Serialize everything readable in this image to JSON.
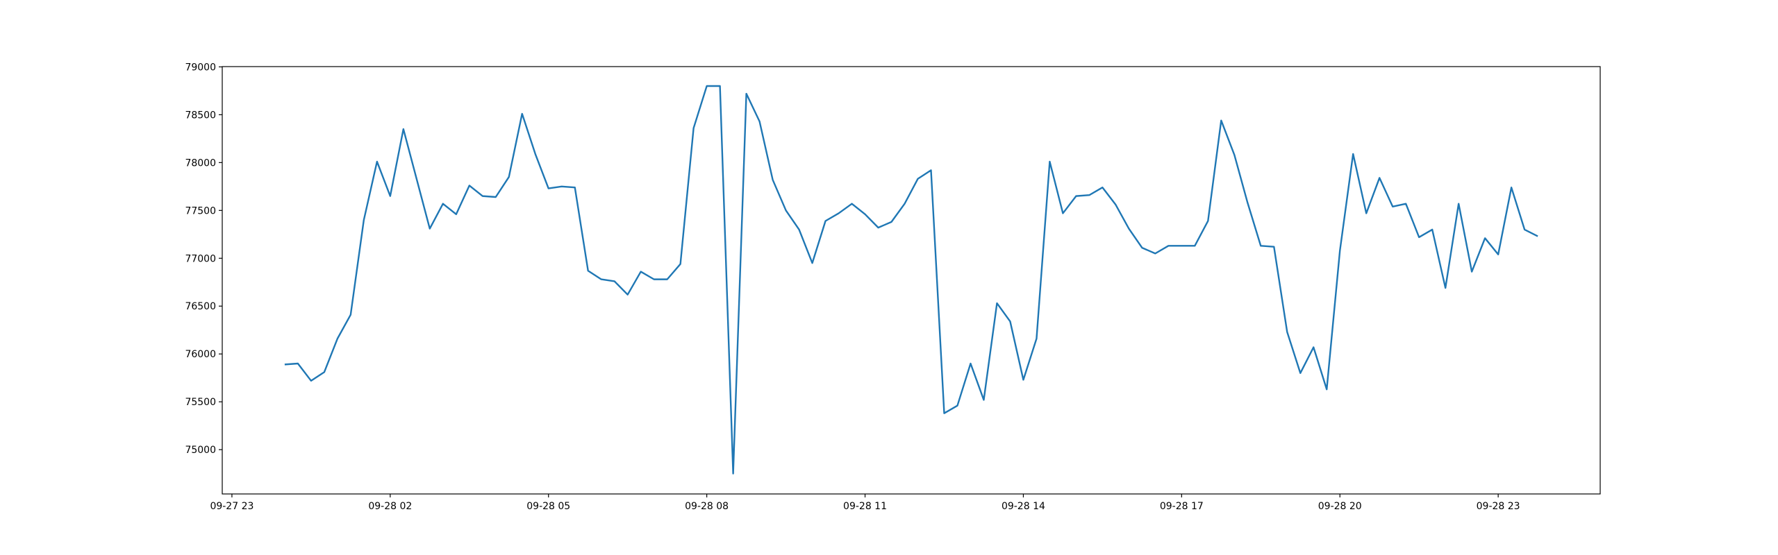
{
  "chart_data": {
    "type": "line",
    "x": [
      "09-28 00:00",
      "09-28 00:15",
      "09-28 00:30",
      "09-28 00:45",
      "09-28 01:00",
      "09-28 01:15",
      "09-28 01:30",
      "09-28 01:45",
      "09-28 02:00",
      "09-28 02:15",
      "09-28 02:30",
      "09-28 02:45",
      "09-28 03:00",
      "09-28 03:15",
      "09-28 03:30",
      "09-28 03:45",
      "09-28 04:00",
      "09-28 04:15",
      "09-28 04:30",
      "09-28 04:45",
      "09-28 05:00",
      "09-28 05:15",
      "09-28 05:30",
      "09-28 05:45",
      "09-28 06:00",
      "09-28 06:15",
      "09-28 06:30",
      "09-28 06:45",
      "09-28 07:00",
      "09-28 07:15",
      "09-28 07:30",
      "09-28 07:45",
      "09-28 08:00",
      "09-28 08:15",
      "09-28 08:30",
      "09-28 08:45",
      "09-28 09:00",
      "09-28 09:15",
      "09-28 09:30",
      "09-28 09:45",
      "09-28 10:00",
      "09-28 10:15",
      "09-28 10:30",
      "09-28 10:45",
      "09-28 11:00",
      "09-28 11:15",
      "09-28 11:30",
      "09-28 11:45",
      "09-28 12:00",
      "09-28 12:15",
      "09-28 12:30",
      "09-28 12:45",
      "09-28 13:00",
      "09-28 13:15",
      "09-28 13:30",
      "09-28 13:45",
      "09-28 14:00",
      "09-28 14:15",
      "09-28 14:30",
      "09-28 14:45",
      "09-28 15:00",
      "09-28 15:15",
      "09-28 15:30",
      "09-28 15:45",
      "09-28 16:00",
      "09-28 16:15",
      "09-28 16:30",
      "09-28 16:45",
      "09-28 17:00",
      "09-28 17:15",
      "09-28 17:30",
      "09-28 17:45",
      "09-28 18:00",
      "09-28 18:15",
      "09-28 18:30",
      "09-28 18:45",
      "09-28 19:00",
      "09-28 19:15",
      "09-28 19:30",
      "09-28 19:45",
      "09-28 20:00",
      "09-28 20:15",
      "09-28 20:30",
      "09-28 20:45",
      "09-28 21:00",
      "09-28 21:15",
      "09-28 21:30",
      "09-28 21:45",
      "09-28 22:00",
      "09-28 22:15",
      "09-28 22:30",
      "09-28 22:45",
      "09-28 23:00",
      "09-28 23:15",
      "09-28 23:30",
      "09-28 23:45"
    ],
    "series": [
      {
        "color": "#1f77b4",
        "values": [
          75890,
          75900,
          75720,
          75810,
          76160,
          76410,
          77400,
          78010,
          77650,
          78350,
          77830,
          77310,
          77570,
          77460,
          77760,
          77650,
          77640,
          77850,
          78510,
          78090,
          77730,
          77750,
          77740,
          76870,
          76780,
          76760,
          76620,
          76860,
          76780,
          76780,
          76940,
          78360,
          78800,
          78800,
          74750,
          78720,
          78430,
          77820,
          77500,
          77300,
          76950,
          77390,
          77470,
          77570,
          77460,
          77320,
          77380,
          77570,
          77830,
          77920,
          75380,
          75460,
          75900,
          75520,
          76530,
          76340,
          75730,
          76160,
          78010,
          77470,
          77650,
          77660,
          77740,
          77560,
          77310,
          77110,
          77050,
          77130,
          77130,
          77130,
          77390,
          78440,
          78080,
          77580,
          77130,
          77120,
          76230,
          75800,
          76070,
          75630,
          77080,
          78090,
          77470,
          77840,
          77540,
          77570,
          77220,
          77300,
          76690,
          77570,
          76860,
          77210,
          77040,
          77740,
          77300,
          77230
        ]
      }
    ],
    "xlim": [
      "09-27 22:49",
      "09-29 00:56"
    ],
    "xticks": [
      {
        "value": "09-27 23:00",
        "label": "09-27 23"
      },
      {
        "value": "09-28 02:00",
        "label": "09-28 02"
      },
      {
        "value": "09-28 05:00",
        "label": "09-28 05"
      },
      {
        "value": "09-28 08:00",
        "label": "09-28 08"
      },
      {
        "value": "09-28 11:00",
        "label": "09-28 11"
      },
      {
        "value": "09-28 14:00",
        "label": "09-28 14"
      },
      {
        "value": "09-28 17:00",
        "label": "09-28 17"
      },
      {
        "value": "09-28 20:00",
        "label": "09-28 20"
      },
      {
        "value": "09-28 23:00",
        "label": "09-28 23"
      }
    ],
    "ylim": [
      74537,
      79003
    ],
    "yticks": [
      75000,
      75500,
      76000,
      76500,
      77000,
      77500,
      78000,
      78500,
      79000
    ]
  }
}
